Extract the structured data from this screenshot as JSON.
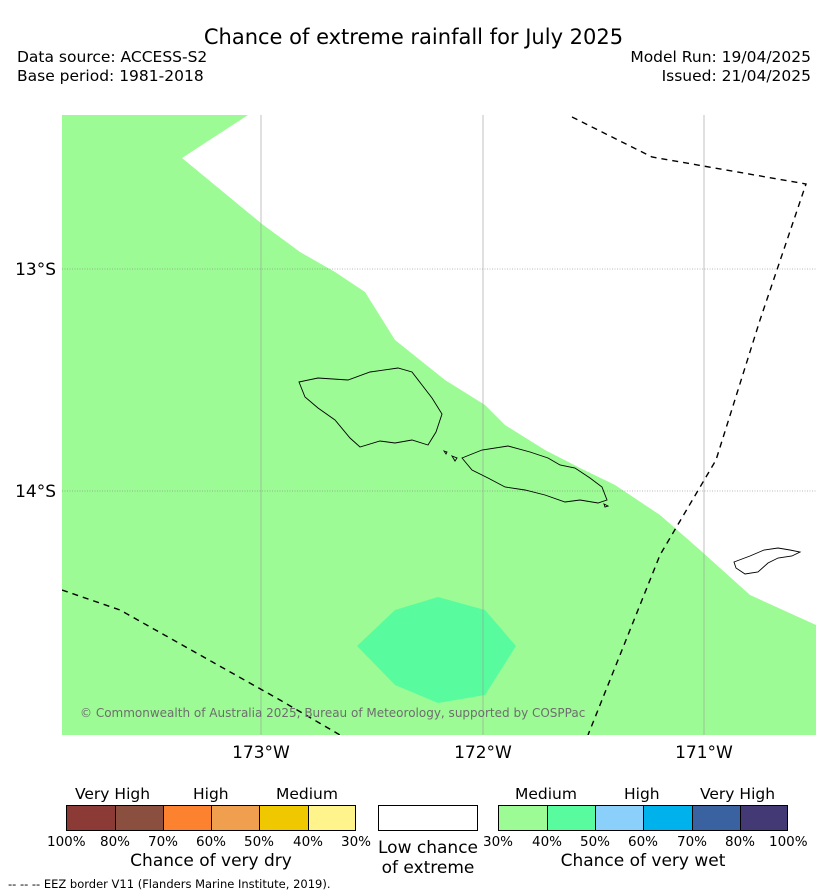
{
  "title": "Chance of extreme rainfall for July 2025",
  "meta": {
    "data_source": "Data source: ACCESS-S2",
    "base_period": "Base period: 1981-2018",
    "model_run": "Model Run: 19/04/2025",
    "issued": "Issued: 21/04/2025"
  },
  "map": {
    "lat_labels": [
      "13°S",
      "14°S"
    ],
    "lon_labels": [
      "173°W",
      "172°W",
      "171°W"
    ],
    "copyright": "© Commonwealth of Australia 2025, Bureau of Meteorology, supported by COSPPac",
    "colors": {
      "medium_wet": "#9cfb94",
      "high_wet": "#58fc9e",
      "eez_line": "#000000"
    }
  },
  "legend": {
    "dry": {
      "headings": [
        "Very High",
        "High",
        "Medium"
      ],
      "ticks": [
        "100%",
        "80%",
        "70%",
        "60%",
        "50%",
        "40%",
        "30%"
      ],
      "caption": "Chance of very dry",
      "colors": [
        "#8b3a35",
        "#8a4f3f",
        "#fd8230",
        "#ef9f4e",
        "#f0c800",
        "#fef48b"
      ]
    },
    "low": {
      "caption_line1": "Low chance",
      "caption_line2": "of extreme",
      "color": "#ffffff"
    },
    "wet": {
      "headings": [
        "Medium",
        "High",
        "Very High"
      ],
      "ticks": [
        "30%",
        "40%",
        "50%",
        "60%",
        "70%",
        "80%",
        "100%"
      ],
      "caption": "Chance of very wet",
      "colors": [
        "#9cfb94",
        "#58fc9e",
        "#8bcffb",
        "#00b2ec",
        "#3a62a0",
        "#433a75"
      ]
    }
  },
  "footer": "--  --  -- EEZ border V11 (Flanders Marine Institute, 2019)."
}
